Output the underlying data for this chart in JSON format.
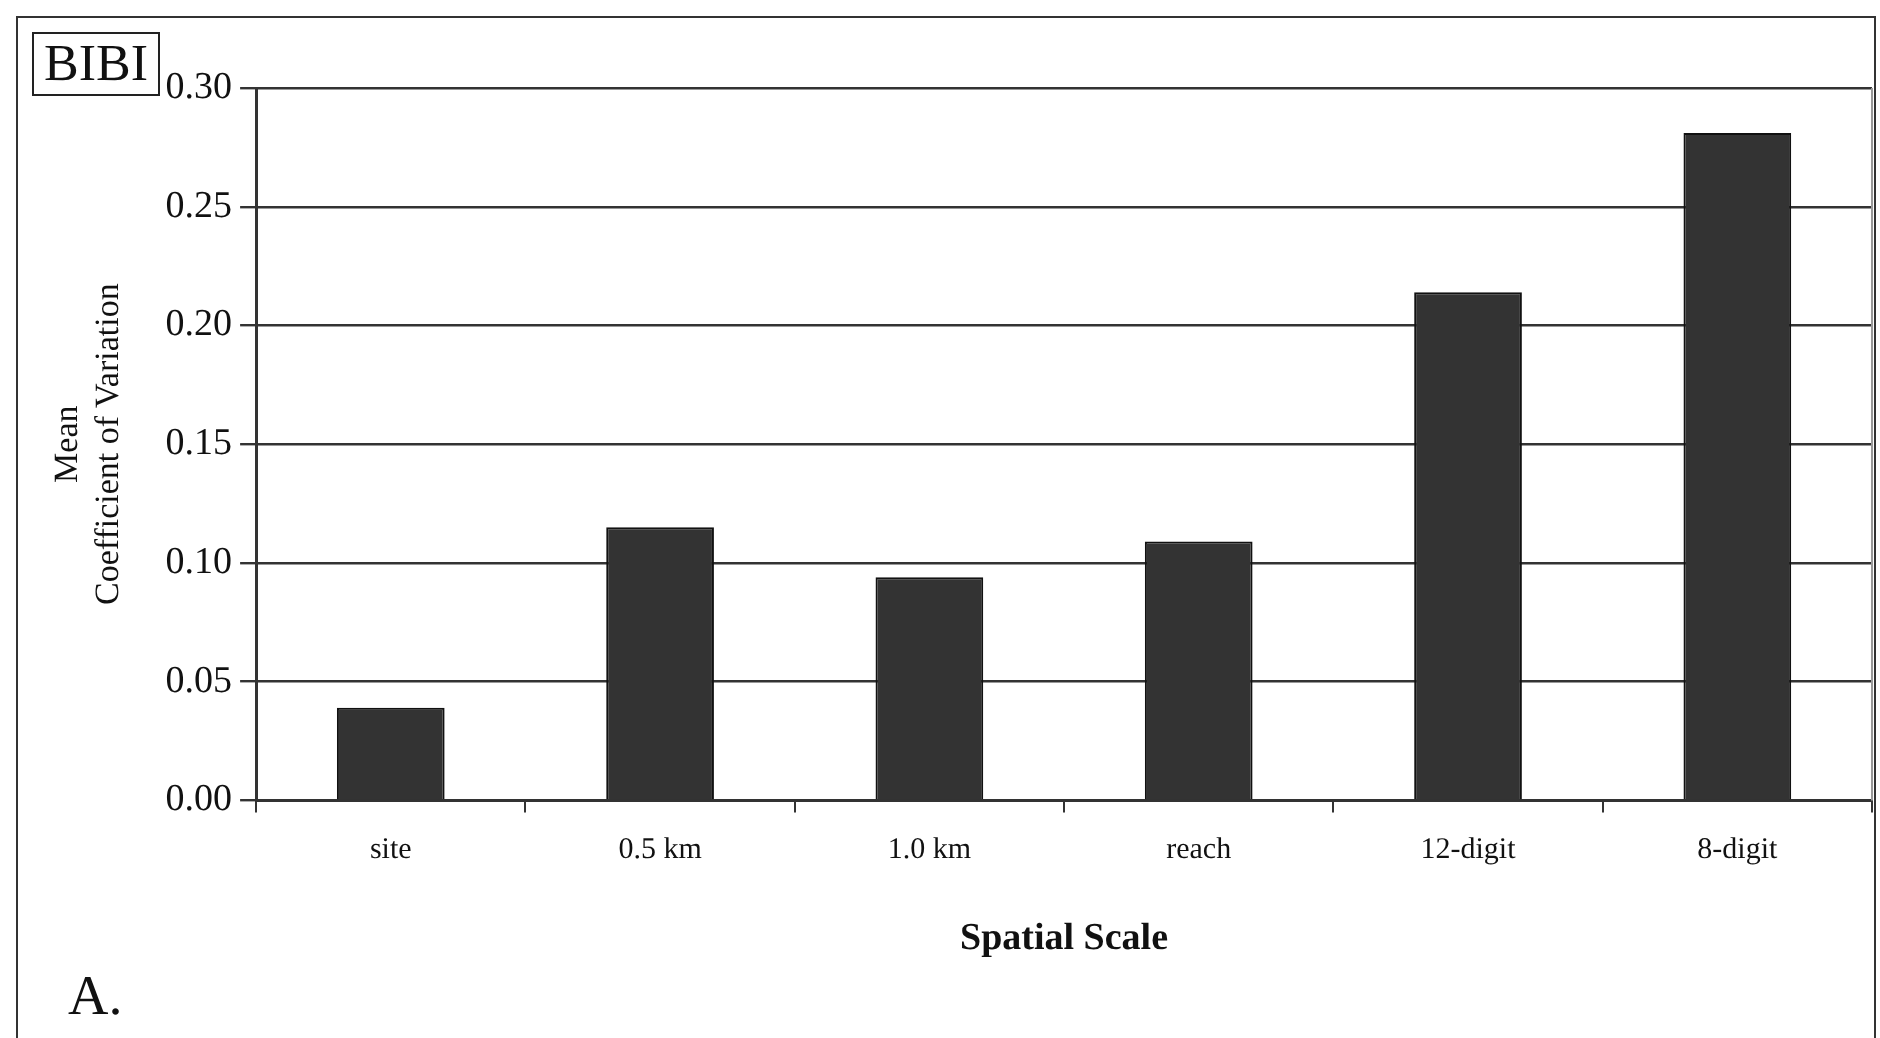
{
  "chart_data": {
    "type": "bar",
    "xlabel": "Spatial Scale",
    "ylabel": "Mean\nCoefficient of Variation",
    "categories": [
      "site",
      "0.5 km",
      "1.0 km",
      "reach",
      "12-digit",
      "8-digit"
    ],
    "values": [
      0.039,
      0.115,
      0.094,
      0.109,
      0.214,
      0.281
    ],
    "color": "#333333",
    "ylim": [
      0,
      0.3
    ],
    "yticks": [
      {
        "value": 0,
        "label": "0.00"
      },
      {
        "value": 0.05,
        "label": "0.05"
      },
      {
        "value": 0.1,
        "label": "0.10"
      },
      {
        "value": 0.15,
        "label": "0.15"
      },
      {
        "value": 0.2,
        "label": "0.20"
      },
      {
        "value": 0.25,
        "label": "0.25"
      },
      {
        "value": 0.3,
        "label": "0.30"
      }
    ],
    "grid": "y",
    "legend": false,
    "annotations": [
      "BIBI",
      "A."
    ]
  }
}
